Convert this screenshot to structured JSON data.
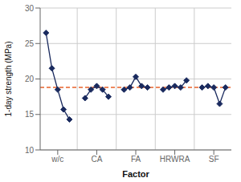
{
  "chart_data": {
    "type": "line",
    "xlabel": "Factor",
    "ylabel": "1-day strength (MPa)",
    "categories": [
      "w/c",
      "CA",
      "FA",
      "HRWRA",
      "SF"
    ],
    "values": [
      [
        26.5,
        21.5,
        18.5,
        15.7,
        14.3
      ],
      [
        17.3,
        18.5,
        19.0,
        18.5,
        17.5
      ],
      [
        18.5,
        18.8,
        20.3,
        19.0,
        18.8
      ],
      [
        18.5,
        18.8,
        19.0,
        18.8,
        19.8
      ],
      [
        18.8,
        19.0,
        18.8,
        16.5,
        18.8
      ]
    ],
    "color": "#1a2a5e",
    "marker": "diamond",
    "grand_mean": {
      "value": 18.8,
      "color": "#e8622a",
      "line_style": "dashed"
    },
    "ylim": [
      10,
      30
    ],
    "yticks": [
      10,
      15,
      20,
      25,
      30
    ],
    "grid": true
  }
}
